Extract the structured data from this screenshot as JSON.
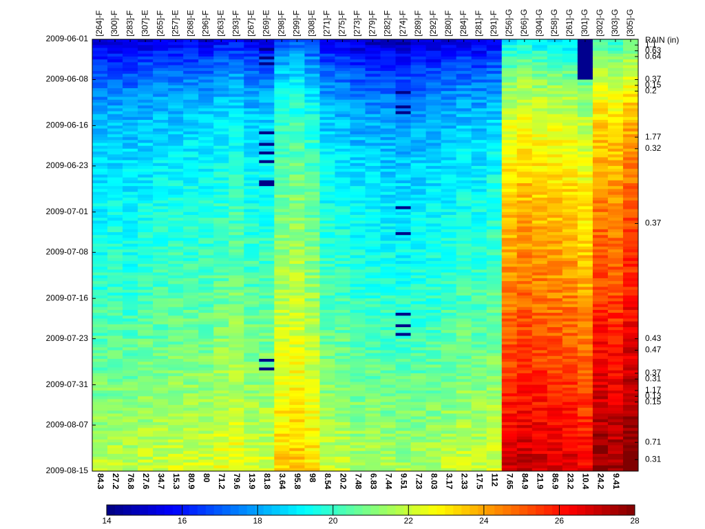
{
  "chart_data": {
    "type": "heatmap",
    "title": "",
    "columns": [
      "[264]-F",
      "[300]-F",
      "[283]-F",
      "[307]-E",
      "[265]-F",
      "[257]-E",
      "[268]-E",
      "[296]-F",
      "[263]-E",
      "[293]-F",
      "[267]-E",
      "[269]-E",
      "[298]-F",
      "[299]-F",
      "[308]-E",
      "[271]-F",
      "[275]-F",
      "[273]-F",
      "[279]-F",
      "[282]-F",
      "[274]-F",
      "[289]-F",
      "[292]-F",
      "[280]-F",
      "[284]-F",
      "[281]-F",
      "[291]-F",
      "[256]-G",
      "[266]-G",
      "[304]-G",
      "[258]-G",
      "[261]-G",
      "[301]-G",
      "[302]-G",
      "[303]-G",
      "[305]-G"
    ],
    "bottom_labels": [
      "84.3",
      "27.2",
      "76.8",
      "27.6",
      "34.7",
      "15.3",
      "80.9",
      "80",
      "71.2",
      "79.6",
      "13.9",
      "81.8",
      "3.64",
      "95.8",
      "98",
      "8.54",
      "20.2",
      "7.48",
      "6.83",
      "7.44",
      "9.51",
      "7.23",
      "8.03",
      "3.17",
      "2.33",
      "17.5",
      "112",
      "7.65",
      "84.9",
      "21.9",
      "86.9",
      "23.2",
      "10.4",
      "24.2",
      "9.41",
      ""
    ],
    "y_ticks": [
      "2009-06-01",
      "2009-06-08",
      "2009-06-16",
      "2009-06-23",
      "2009-07-01",
      "2009-07-08",
      "2009-07-16",
      "2009-07-23",
      "2009-07-31",
      "2009-08-07",
      "2009-08-15"
    ],
    "y_range": [
      "2009-06-01",
      "2009-08-15"
    ],
    "column_base_values": [
      18.6,
      18.7,
      18.6,
      18.8,
      18.9,
      19.0,
      19.0,
      19.0,
      19.3,
      19.5,
      19.0,
      19.0,
      20.3,
      20.5,
      20.0,
      18.9,
      18.8,
      18.5,
      18.5,
      18.4,
      18.3,
      18.4,
      18.5,
      18.7,
      18.9,
      18.8,
      19.1,
      22.5,
      22.8,
      22.6,
      22.5,
      22.4,
      22.0,
      23.5,
      23.3,
      24.0
    ],
    "rain_label": "RAIN (in)",
    "rain_events": [
      {
        "date": "2009-06-02",
        "value": "1.1"
      },
      {
        "date": "2009-06-03",
        "value": "0.63"
      },
      {
        "date": "2009-06-04",
        "value": "0.64"
      },
      {
        "date": "2009-06-08",
        "value": "0.37"
      },
      {
        "date": "2009-06-09",
        "value": "0.15"
      },
      {
        "date": "2009-06-10",
        "value": "0.2"
      },
      {
        "date": "2009-06-18",
        "value": "1.77"
      },
      {
        "date": "2009-06-20",
        "value": "0.32"
      },
      {
        "date": "2009-07-03",
        "value": "0.37"
      },
      {
        "date": "2009-07-23",
        "value": "0.43"
      },
      {
        "date": "2009-07-25",
        "value": "0.47"
      },
      {
        "date": "2009-07-29",
        "value": "0.37"
      },
      {
        "date": "2009-07-30",
        "value": "0.31"
      },
      {
        "date": "2009-08-01",
        "value": "1.17"
      },
      {
        "date": "2009-08-02",
        "value": "0.13"
      },
      {
        "date": "2009-08-03",
        "value": "0.15"
      },
      {
        "date": "2009-08-10",
        "value": "0.71"
      },
      {
        "date": "2009-08-13",
        "value": "0.31"
      }
    ],
    "colorbar": {
      "min": 14,
      "max": 28,
      "ticks": [
        "14",
        "16",
        "18",
        "20",
        "22",
        "24",
        "26",
        "28"
      ],
      "colormap": "jet"
    },
    "grid": false
  }
}
